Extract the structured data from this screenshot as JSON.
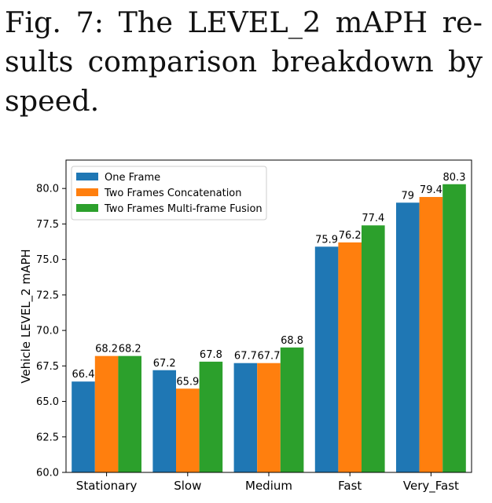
{
  "caption": {
    "line1": "Fig. 7: The LEVEL_2 mAPH re-",
    "line2": "sults comparison breakdown by",
    "line3": "speed."
  },
  "chart_data": {
    "type": "bar",
    "title": "",
    "xlabel": "",
    "ylabel": "Vehicle LEVEL_2 mAPH",
    "categories": [
      "Stationary",
      "Slow",
      "Medium",
      "Fast",
      "Very_Fast"
    ],
    "series": [
      {
        "name": "One Frame",
        "color": "#1f77b4",
        "values": [
          66.4,
          67.2,
          67.7,
          75.9,
          79
        ]
      },
      {
        "name": "Two Frames Concatenation",
        "color": "#ff7f0e",
        "values": [
          68.2,
          65.9,
          67.7,
          76.2,
          79.4
        ]
      },
      {
        "name": "Two Frames Multi-frame Fusion",
        "color": "#2ca02c",
        "values": [
          68.2,
          67.8,
          68.8,
          77.4,
          80.3
        ]
      }
    ],
    "ylim": [
      60,
      82
    ],
    "yticks": [
      60.0,
      62.5,
      65.0,
      67.5,
      70.0,
      72.5,
      75.0,
      77.5,
      80.0
    ],
    "legend": "top-left",
    "grid": false
  }
}
